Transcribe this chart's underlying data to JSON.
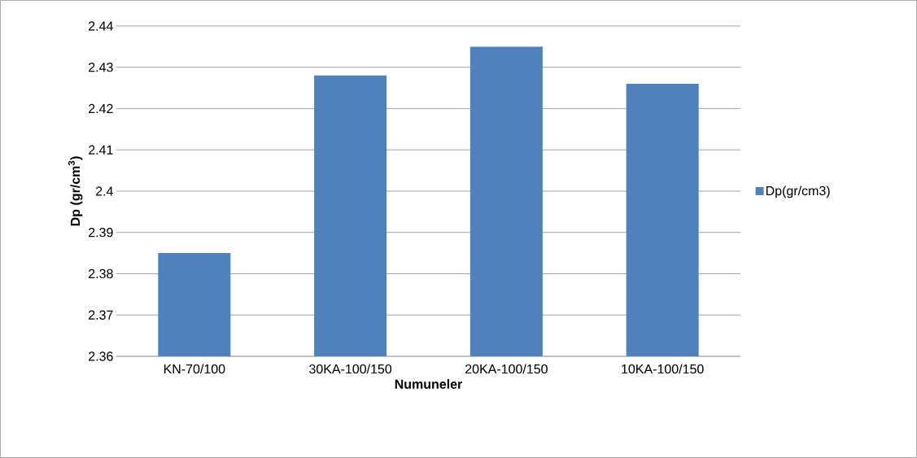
{
  "chart_data": {
    "type": "bar",
    "xlabel": "Numuneler",
    "ylabel": "**Dp (gr/cm$^{3}$)**",
    "categories": [
      "KN-70/100",
      "30KA-100/150",
      "20KA-100/150",
      "10KA-100/150"
    ],
    "series": [
      {
        "name": "Dp(gr/cm3)",
        "color": "#4f81bd",
        "values": [
          2.385,
          2.428,
          2.435,
          2.426
        ]
      }
    ],
    "ylim": [
      2.36,
      2.44
    ],
    "yticks": [
      2.36,
      2.37,
      2.38,
      2.39,
      2.4,
      2.41,
      2.42,
      2.43,
      2.44
    ],
    "grid": "y",
    "legend": "right"
  }
}
